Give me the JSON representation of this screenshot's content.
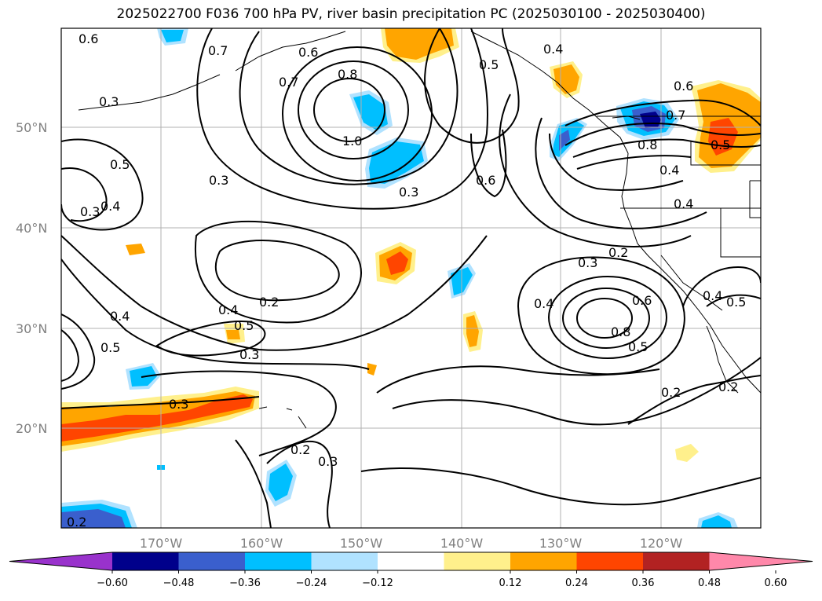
{
  "title": "2025022700 F036 700 hPa PV, river basin precipitation PC (2025030100 - 2025030400)",
  "lat_labels": [
    "50°N",
    "40°N",
    "30°N",
    "20°N"
  ],
  "lon_labels": [
    "170°W",
    "160°W",
    "150°W",
    "140°W",
    "130°W",
    "120°W"
  ],
  "contour_labels": [
    "0.6",
    "0.7",
    "0.6",
    "0.7",
    "0.8",
    "0.5",
    "0.4",
    "0.3",
    "1.0",
    "0.3",
    "0.6",
    "0.7",
    "0.8",
    "0.4",
    "0.5",
    "0.6",
    "0.5",
    "0.3",
    "0.3",
    "0.4",
    "0.4",
    "0.2",
    "0.3",
    "0.2",
    "0.4",
    "0.5",
    "0.4",
    "0.5",
    "0.3",
    "0.3",
    "0.2",
    "0.3",
    "0.4",
    "0.6",
    "0.8",
    "0.5",
    "0.2",
    "0.4",
    "0.5",
    "0.2",
    "0.2"
  ],
  "colorbar": {
    "ticks": [
      "−0.60",
      "−0.48",
      "−0.36",
      "−0.24",
      "−0.12",
      "0.12",
      "0.24",
      "0.36",
      "0.48",
      "0.60"
    ],
    "colors": [
      "#9932cc",
      "#00008b",
      "#3a5fcd",
      "#00bfff",
      "#b0e2ff",
      "#ffffff",
      "#fff08c",
      "#ffa500",
      "#ff4500",
      "#b22222",
      "#ff88aa"
    ]
  }
}
